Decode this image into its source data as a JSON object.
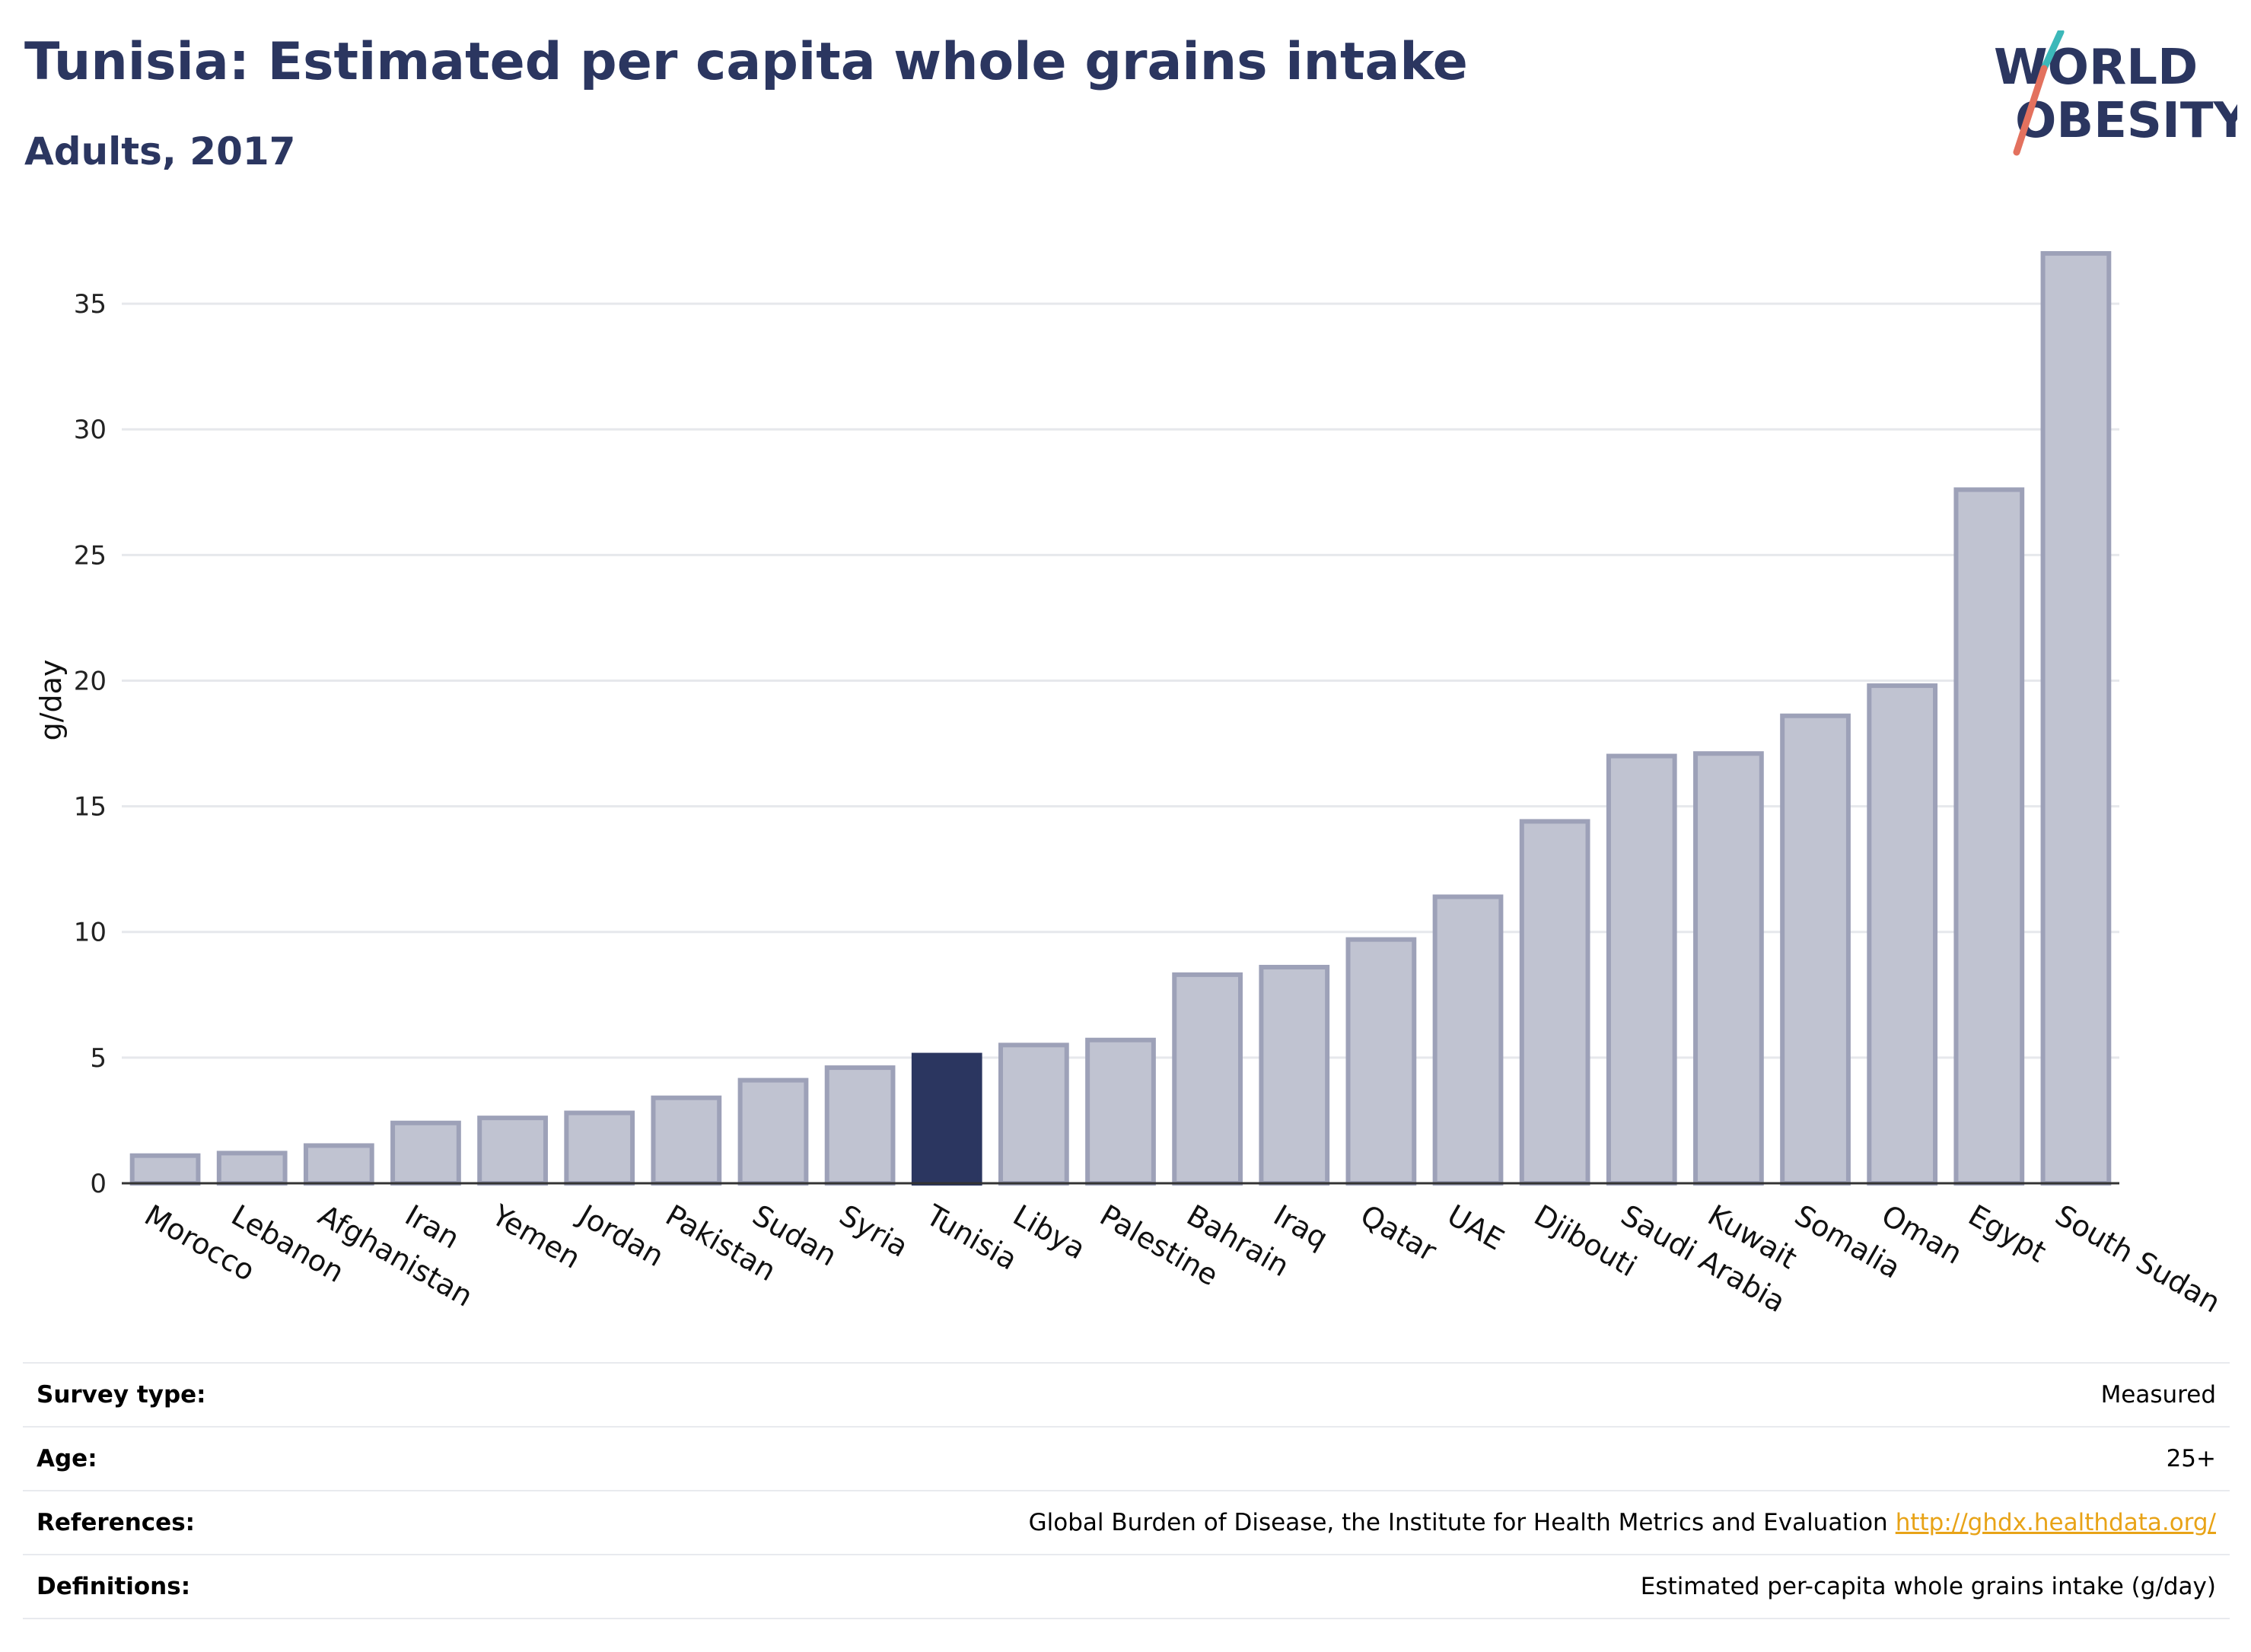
{
  "header": {
    "title": "Tunisia: Estimated per capita whole grains intake",
    "subtitle": "Adults, 2017"
  },
  "logo": {
    "line1": "WORLD",
    "line2": "OBESITY"
  },
  "chart_data": {
    "type": "bar",
    "title": "Tunisia: Estimated per capita whole grains intake",
    "subtitle": "Adults, 2017",
    "xlabel": "",
    "ylabel": "g/day",
    "ylim": [
      0,
      38
    ],
    "yticks": [
      0,
      5,
      10,
      15,
      20,
      25,
      30,
      35
    ],
    "grid": true,
    "legend": "none",
    "highlight": "Tunisia",
    "colors": {
      "bar": "#c0c3d1",
      "bar_edge": "#9da1b8",
      "highlight": "#2b3660",
      "grid": "#e6e8ec"
    },
    "categories": [
      "Morocco",
      "Lebanon",
      "Afghanistan",
      "Iran",
      "Yemen",
      "Jordan",
      "Pakistan",
      "Sudan",
      "Syria",
      "Tunisia",
      "Libya",
      "Palestine",
      "Bahrain",
      "Iraq",
      "Qatar",
      "UAE",
      "Djibouti",
      "Saudi Arabia",
      "Kuwait",
      "Somalia",
      "Oman",
      "Egypt",
      "South Sudan"
    ],
    "values": [
      1.1,
      1.2,
      1.5,
      2.4,
      2.6,
      2.8,
      3.4,
      4.1,
      4.6,
      5.1,
      5.5,
      5.7,
      8.3,
      8.6,
      9.7,
      11.4,
      14.4,
      17.0,
      17.1,
      18.6,
      19.8,
      27.6,
      37.0
    ]
  },
  "meta": {
    "rows": [
      {
        "key": "Survey type:",
        "value": "Measured"
      },
      {
        "key": "Age:",
        "value": "25+"
      },
      {
        "key": "References:",
        "value": "Global Burden of Disease, the Institute for Health Metrics and Evaluation",
        "link": "http://ghdx.healthdata.org/"
      },
      {
        "key": "Definitions:",
        "value": "Estimated per-capita whole grains intake (g/day)"
      }
    ]
  }
}
